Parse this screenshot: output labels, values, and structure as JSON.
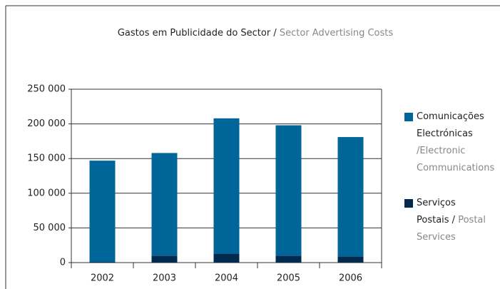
{
  "chart_data": {
    "type": "stacked_bar",
    "title": "Gastos em Publicidade do Sector /",
    "subtitle": "Sector Advertising Costs",
    "categories": [
      "2002",
      "2003",
      "2004",
      "2005",
      "2006"
    ],
    "series": [
      {
        "name": "Comunicações Electrónicas",
        "name_en": "/Electronic Communications",
        "color": "#00669a",
        "values": [
          146000,
          148000,
          195000,
          188000,
          172000
        ]
      },
      {
        "name": "Serviços Postais /",
        "name_en": "Postal Services",
        "color": "#002b4f",
        "values": [
          1000,
          10000,
          13000,
          10000,
          9000
        ]
      }
    ],
    "ylim": [
      0,
      250000
    ],
    "yticks": [
      {
        "value": 0,
        "label": "0"
      },
      {
        "value": 50000,
        "label": "50 000"
      },
      {
        "value": 100000,
        "label": "100 000"
      },
      {
        "value": 150000,
        "label": "150 000"
      },
      {
        "value": 200000,
        "label": "200 000"
      },
      {
        "value": 250000,
        "label": "250 000"
      }
    ],
    "grid": true,
    "legend": "right"
  }
}
